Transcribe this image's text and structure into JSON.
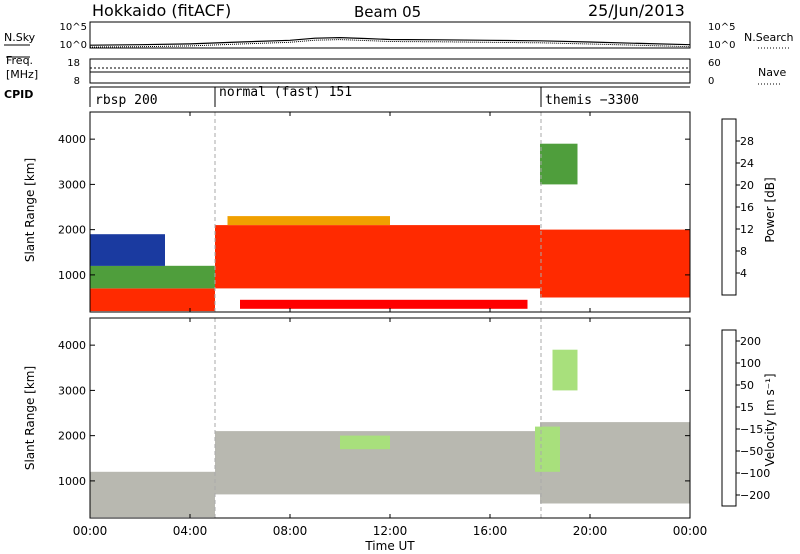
{
  "header": {
    "station": "Hokkaido (fitACF)",
    "beam": "Beam 05",
    "date": "25/Jun/2013"
  },
  "left_labels": {
    "nsky": "N.Sky",
    "freq_line1": "Freq.",
    "freq_line2": "[MHz]",
    "cpid": "CPID"
  },
  "right_labels": {
    "nsearch": "N.Search",
    "nave": "Nave"
  },
  "axis_labels": {
    "slant_range": "Slant Range [km]",
    "time": "Time UT",
    "power": "Power [dB]",
    "velocity": "Velocity [m s⁻¹]"
  },
  "cpid_segments": [
    {
      "label": "rbsp 200",
      "start_hour": 0
    },
    {
      "label": "normal (fast) 151",
      "start_hour": 5
    },
    {
      "label": "themis −3300",
      "start_hour": 18
    }
  ],
  "colors": {
    "power_scale": [
      "#0000ff",
      "#1a3aa0",
      "#2e7d4f",
      "#4f9e3c",
      "#a8c832",
      "#f0a000",
      "#ff6a00",
      "#ff2a00",
      "#ff0000"
    ],
    "velocity_scale": [
      "#1a1aa0",
      "#2e7d4f",
      "#58c83c",
      "#a8e07c",
      "#b8b8b0",
      "#f0a000",
      "#ff7800",
      "#ff3000",
      "#ff0000"
    ],
    "ground_scatter": "#b8b8b0"
  },
  "chart_data": [
    {
      "type": "line",
      "name": "noise",
      "x_range": [
        0,
        24
      ],
      "y_ticks": [
        "10^5",
        "10^0"
      ],
      "y_ticks_right": [
        "10^5",
        "10^0"
      ],
      "y_scale": "log",
      "x": [
        0,
        2,
        4,
        6,
        8,
        9,
        10,
        11,
        12,
        14,
        16,
        18,
        20,
        22,
        24
      ],
      "values": [
        1.5,
        2,
        3,
        8,
        20,
        60,
        80,
        50,
        30,
        25,
        20,
        15,
        8,
        4,
        2
      ]
    },
    {
      "type": "line",
      "name": "freq-nave",
      "x_range": [
        0,
        24
      ],
      "y_ticks": [
        "18",
        "8"
      ],
      "y_ticks_right": [
        "60",
        "0"
      ],
      "x": [
        0,
        24
      ],
      "values": [
        11.0,
        11.0
      ]
    },
    {
      "type": "heatmap",
      "name": "power",
      "x_label": "",
      "y_label": "Slant Range [km]",
      "colorbar_label": "Power [dB]",
      "x_range": [
        0,
        24
      ],
      "y_range": [
        180,
        4600
      ],
      "y_ticks": [
        1000,
        2000,
        3000,
        4000
      ],
      "colorbar_ticks": [
        4,
        8,
        12,
        16,
        20,
        24,
        28
      ],
      "colorbar_range": [
        0,
        32
      ],
      "regions": [
        {
          "t0": 0.0,
          "t1": 5.0,
          "r0": 200,
          "r1": 700,
          "value": 26
        },
        {
          "t0": 0.0,
          "t1": 5.0,
          "r0": 700,
          "r1": 1200,
          "value": 14
        },
        {
          "t0": 0.0,
          "t1": 3.0,
          "r0": 1200,
          "r1": 1900,
          "value": 7
        },
        {
          "t0": 5.0,
          "t1": 18.0,
          "r0": 700,
          "r1": 2100,
          "value": 26
        },
        {
          "t0": 5.5,
          "t1": 12.0,
          "r0": 2100,
          "r1": 2300,
          "value": 20
        },
        {
          "t0": 6.0,
          "t1": 17.5,
          "r0": 250,
          "r1": 450,
          "value": 30
        },
        {
          "t0": 18.0,
          "t1": 24.0,
          "r0": 500,
          "r1": 2000,
          "value": 27
        },
        {
          "t0": 18.0,
          "t1": 19.5,
          "r0": 3000,
          "r1": 3900,
          "value": 12
        }
      ]
    },
    {
      "type": "heatmap",
      "name": "velocity",
      "x_label": "Time UT",
      "y_label": "Slant Range [km]",
      "colorbar_label": "Velocity [m s⁻¹]",
      "x_range": [
        0,
        24
      ],
      "x_ticks": [
        "00:00",
        "04:00",
        "08:00",
        "12:00",
        "16:00",
        "20:00",
        "00:00"
      ],
      "y_range": [
        180,
        4600
      ],
      "y_ticks": [
        1000,
        2000,
        3000,
        4000
      ],
      "colorbar_ticks": [
        200,
        100,
        50,
        15,
        -15,
        -50,
        -100,
        -200
      ],
      "colorbar_range": [
        -250,
        250
      ],
      "regions": [
        {
          "t0": 0.0,
          "t1": 5.0,
          "r0": 200,
          "r1": 1200,
          "value": 0,
          "ground_scatter": true
        },
        {
          "t0": 5.0,
          "t1": 18.0,
          "r0": 700,
          "r1": 2100,
          "value": 0,
          "ground_scatter": true
        },
        {
          "t0": 18.0,
          "t1": 24.0,
          "r0": 500,
          "r1": 2300,
          "value": 0,
          "ground_scatter": true
        },
        {
          "t0": 17.8,
          "t1": 18.8,
          "r0": 1200,
          "r1": 2200,
          "value": 40
        },
        {
          "t0": 18.5,
          "t1": 19.5,
          "r0": 3000,
          "r1": 3900,
          "value": 45
        },
        {
          "t0": 10.0,
          "t1": 12.0,
          "r0": 1700,
          "r1": 2000,
          "value": 35
        }
      ]
    }
  ]
}
